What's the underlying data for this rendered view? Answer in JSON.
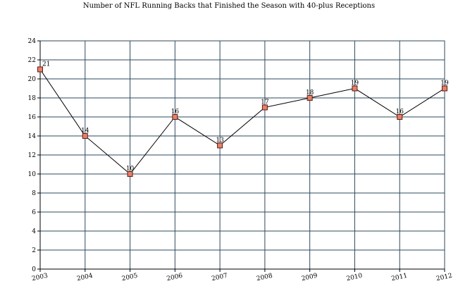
{
  "chart_data": {
    "type": "line",
    "title": "Number of NFL Running Backs that Finished the Season with 40-plus Receptions",
    "xlabel": "",
    "ylabel": "",
    "categories": [
      "2003",
      "2004",
      "2005",
      "2006",
      "2007",
      "2008",
      "2009",
      "2010",
      "2011",
      "2012"
    ],
    "series": [
      {
        "values": [
          21,
          14,
          10,
          16,
          13,
          17,
          18,
          19,
          16,
          19
        ],
        "labels": [
          "21",
          "14",
          "10",
          "16",
          "13",
          "17",
          "18",
          "19",
          "16",
          "19"
        ]
      }
    ],
    "ylim": [
      0,
      24
    ],
    "yticks": [
      "0",
      "2",
      "4",
      "6",
      "8",
      "10",
      "12",
      "14",
      "16",
      "18",
      "20",
      "22",
      "24"
    ],
    "grid": true,
    "legend": "none",
    "colors": {
      "grid": "#2e4a5c",
      "line": "#000000",
      "marker_fill": "#e8806a",
      "marker_stroke": "#5a1a10"
    }
  }
}
